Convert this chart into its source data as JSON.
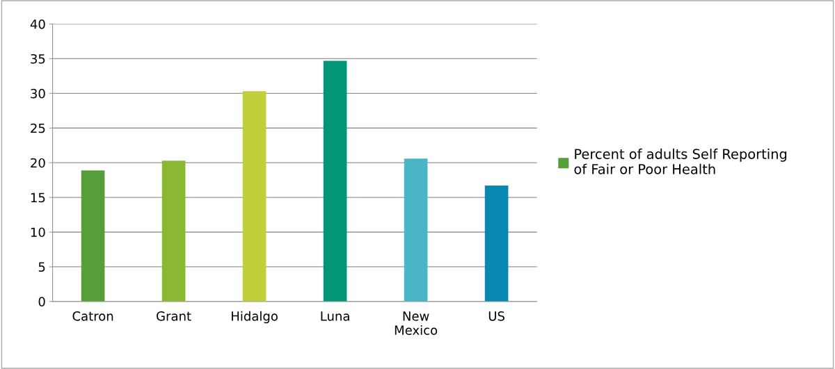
{
  "chart_data": {
    "type": "bar",
    "categories": [
      "Catron",
      "Grant",
      "Hidalgo",
      "Luna",
      "New\nMexico",
      "US"
    ],
    "series": [
      {
        "name": "Percent of adults Self Reporting\nof Fair or Poor Health",
        "color": "#559e3a",
        "colors": [
          "#559e3a",
          "#8ab833",
          "#c0cf3a",
          "#029676",
          "#4ab5c4",
          "#0989b1"
        ],
        "values": [
          18.9,
          20.3,
          30.3,
          34.7,
          20.6,
          16.7
        ]
      }
    ],
    "ylim": [
      0,
      40
    ],
    "yticks": [
      0,
      5,
      10,
      15,
      20,
      25,
      30,
      35,
      40
    ],
    "grid": "y",
    "legend": "right"
  }
}
